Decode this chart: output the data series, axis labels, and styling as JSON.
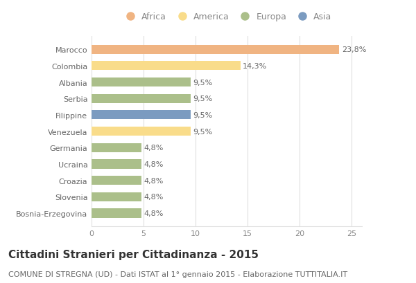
{
  "categories": [
    "Marocco",
    "Colombia",
    "Albania",
    "Serbia",
    "Filippine",
    "Venezuela",
    "Germania",
    "Ucraina",
    "Croazia",
    "Slovenia",
    "Bosnia-Erzegovina"
  ],
  "values": [
    23.8,
    14.3,
    9.5,
    9.5,
    9.5,
    9.5,
    4.8,
    4.8,
    4.8,
    4.8,
    4.8
  ],
  "colors": [
    "#F0B482",
    "#F9DC8A",
    "#ABBF8A",
    "#ABBF8A",
    "#7B9BC0",
    "#F9DC8A",
    "#ABBF8A",
    "#ABBF8A",
    "#ABBF8A",
    "#ABBF8A",
    "#ABBF8A"
  ],
  "labels": [
    "23,8%",
    "14,3%",
    "9,5%",
    "9,5%",
    "9,5%",
    "9,5%",
    "4,8%",
    "4,8%",
    "4,8%",
    "4,8%",
    "4,8%"
  ],
  "legend": [
    {
      "label": "Africa",
      "color": "#F0B482"
    },
    {
      "label": "America",
      "color": "#F9DC8A"
    },
    {
      "label": "Europa",
      "color": "#ABBF8A"
    },
    {
      "label": "Asia",
      "color": "#7B9BC0"
    }
  ],
  "title": "Cittadini Stranieri per Cittadinanza - 2015",
  "subtitle": "COMUNE DI STREGNA (UD) - Dati ISTAT al 1° gennaio 2015 - Elaborazione TUTTITALIA.IT",
  "xlim": [
    0,
    26
  ],
  "xticks": [
    0,
    5,
    10,
    15,
    20,
    25
  ],
  "background_color": "#ffffff",
  "grid_color": "#e0e0e0",
  "bar_height": 0.55,
  "title_fontsize": 11,
  "subtitle_fontsize": 8,
  "label_fontsize": 8,
  "tick_fontsize": 8,
  "legend_fontsize": 9
}
